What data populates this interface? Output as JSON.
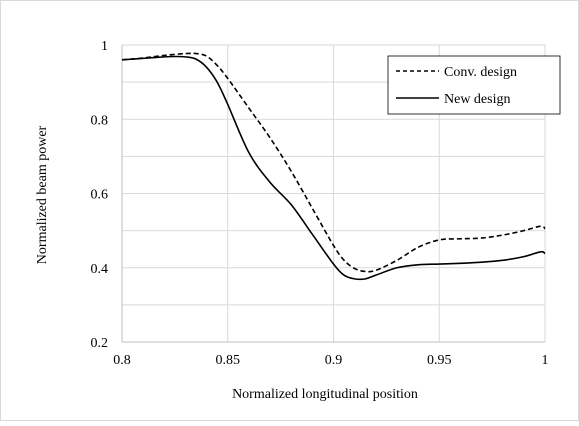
{
  "chart_data": {
    "type": "line",
    "xlabel": "Normalized longitudinal position",
    "ylabel": "Normalized beam power",
    "xlim": [
      0.8,
      1.0
    ],
    "ylim": [
      0.2,
      1.0
    ],
    "x_ticks": [
      "0.8",
      "0.85",
      "0.9",
      "0.95",
      "1"
    ],
    "y_ticks": [
      "0.2",
      "0.4",
      "0.6",
      "0.8",
      "1"
    ],
    "grid": "major",
    "legend_position": "top-right",
    "series": [
      {
        "name": "Conv. design",
        "style": "dashed",
        "color": "#000000",
        "x": [
          0.8,
          0.81,
          0.82,
          0.83,
          0.835,
          0.84,
          0.845,
          0.85,
          0.86,
          0.87,
          0.88,
          0.89,
          0.9,
          0.905,
          0.91,
          0.915,
          0.92,
          0.93,
          0.94,
          0.95,
          0.96,
          0.97,
          0.98,
          0.99,
          0.998,
          1.0
        ],
        "y": [
          0.96,
          0.965,
          0.972,
          0.977,
          0.977,
          0.97,
          0.945,
          0.91,
          0.83,
          0.75,
          0.66,
          0.56,
          0.46,
          0.42,
          0.398,
          0.39,
          0.393,
          0.42,
          0.455,
          0.475,
          0.478,
          0.48,
          0.488,
          0.5,
          0.512,
          0.505
        ]
      },
      {
        "name": "New design",
        "style": "solid",
        "color": "#000000",
        "x": [
          0.8,
          0.81,
          0.82,
          0.825,
          0.83,
          0.835,
          0.84,
          0.845,
          0.85,
          0.86,
          0.87,
          0.88,
          0.89,
          0.9,
          0.905,
          0.91,
          0.915,
          0.92,
          0.93,
          0.94,
          0.95,
          0.96,
          0.97,
          0.98,
          0.99,
          0.998,
          1.0
        ],
        "y": [
          0.96,
          0.964,
          0.968,
          0.969,
          0.968,
          0.962,
          0.94,
          0.9,
          0.84,
          0.71,
          0.63,
          0.57,
          0.49,
          0.41,
          0.38,
          0.37,
          0.37,
          0.38,
          0.4,
          0.408,
          0.41,
          0.412,
          0.415,
          0.42,
          0.43,
          0.443,
          0.438
        ]
      }
    ]
  }
}
